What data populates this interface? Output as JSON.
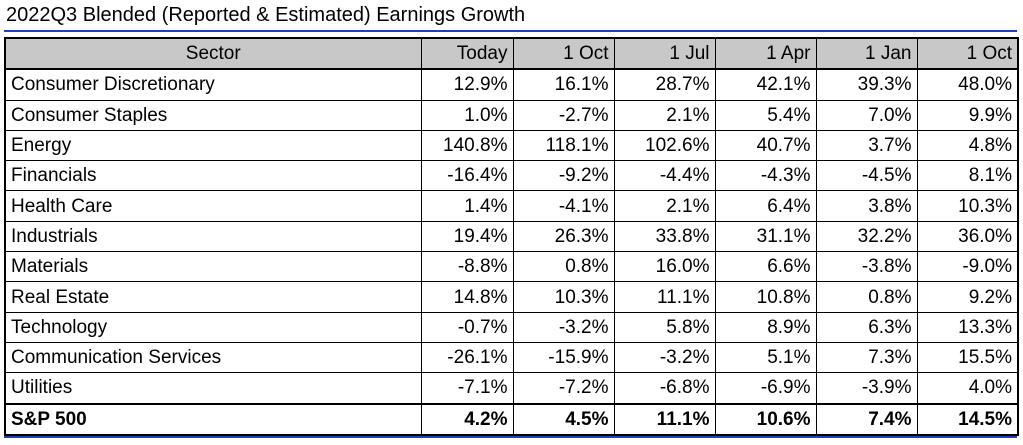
{
  "title": "2022Q3 Blended (Reported & Estimated) Earnings Growth",
  "table": {
    "headers": [
      "Sector",
      "Today",
      "1 Oct",
      "1 Jul",
      "1 Apr",
      "1 Jan",
      "1 Oct"
    ],
    "rows": [
      {
        "sector": "Consumer Discretionary",
        "values": [
          "12.9%",
          "16.1%",
          "28.7%",
          "42.1%",
          "39.3%",
          "48.0%"
        ]
      },
      {
        "sector": "Consumer Staples",
        "values": [
          "1.0%",
          "-2.7%",
          "2.1%",
          "5.4%",
          "7.0%",
          "9.9%"
        ]
      },
      {
        "sector": "Energy",
        "values": [
          "140.8%",
          "118.1%",
          "102.6%",
          "40.7%",
          "3.7%",
          "4.8%"
        ]
      },
      {
        "sector": "Financials",
        "values": [
          "-16.4%",
          "-9.2%",
          "-4.4%",
          "-4.3%",
          "-4.5%",
          "8.1%"
        ]
      },
      {
        "sector": "Health Care",
        "values": [
          "1.4%",
          "-4.1%",
          "2.1%",
          "6.4%",
          "3.8%",
          "10.3%"
        ]
      },
      {
        "sector": "Industrials",
        "values": [
          "19.4%",
          "26.3%",
          "33.8%",
          "31.1%",
          "32.2%",
          "36.0%"
        ]
      },
      {
        "sector": "Materials",
        "values": [
          "-8.8%",
          "0.8%",
          "16.0%",
          "6.6%",
          "-3.8%",
          "-9.0%"
        ]
      },
      {
        "sector": "Real Estate",
        "values": [
          "14.8%",
          "10.3%",
          "11.1%",
          "10.8%",
          "0.8%",
          "9.2%"
        ]
      },
      {
        "sector": "Technology",
        "values": [
          "-0.7%",
          "-3.2%",
          "5.8%",
          "8.9%",
          "6.3%",
          "13.3%"
        ]
      },
      {
        "sector": "Communication Services",
        "values": [
          "-26.1%",
          "-15.9%",
          "-3.2%",
          "5.1%",
          "7.3%",
          "15.5%"
        ]
      },
      {
        "sector": "Utilities",
        "values": [
          "-7.1%",
          "-7.2%",
          "-6.8%",
          "-6.9%",
          "-3.9%",
          "4.0%"
        ]
      }
    ],
    "total": {
      "sector": "S&P 500",
      "values": [
        "4.2%",
        "4.5%",
        "11.1%",
        "10.6%",
        "7.4%",
        "14.5%"
      ]
    }
  },
  "colors": {
    "rule": "#1f3fbf",
    "header_bg": "#c8c8c8"
  }
}
